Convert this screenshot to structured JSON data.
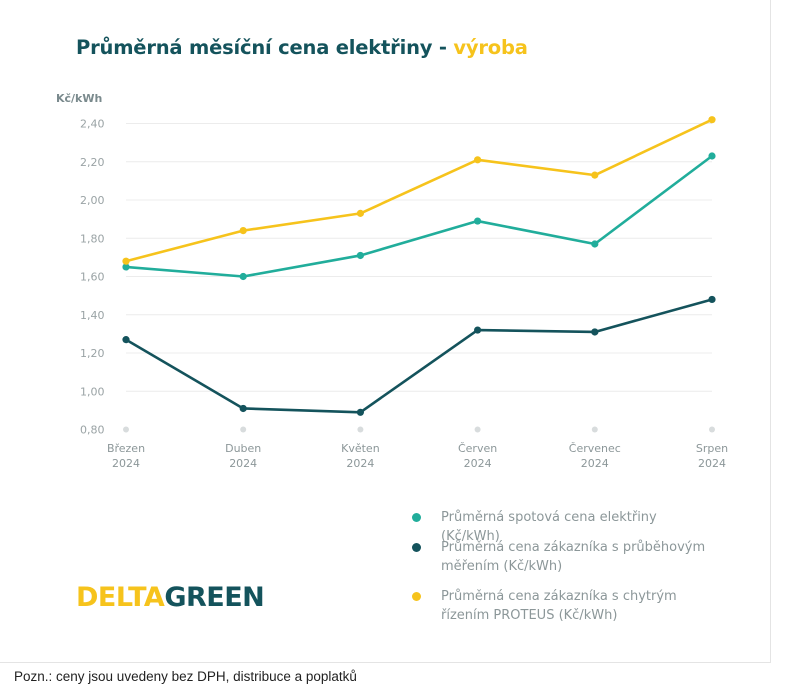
{
  "title": {
    "main": "Průměrná měsíční cena elektřiny -",
    "accent": "výroba"
  },
  "chart_data": {
    "type": "line",
    "ylabel": "Kč/kWh",
    "ylim": [
      0.8,
      2.4
    ],
    "yticks": [
      "0,80",
      "1,00",
      "1,20",
      "1,40",
      "1,60",
      "1,80",
      "2,00",
      "2,20",
      "2,40"
    ],
    "categories": [
      [
        "Březen",
        "2024"
      ],
      [
        "Duben",
        "2024"
      ],
      [
        "Květen",
        "2024"
      ],
      [
        "Červen",
        "2024"
      ],
      [
        "Červenec",
        "2024"
      ],
      [
        "Srpen",
        "2024"
      ]
    ],
    "series": [
      {
        "name": "Průměrná spotová cena elektřiny (Kč/kWh)",
        "color": "#21ad9b",
        "values": [
          1.65,
          1.6,
          1.71,
          1.89,
          1.77,
          2.23
        ]
      },
      {
        "name": "Průměrná cena zákazníka s průběhovým měřením (Kč/kWh)",
        "color": "#14535c",
        "values": [
          1.27,
          0.91,
          0.89,
          1.32,
          1.31,
          1.48
        ]
      },
      {
        "name": "Průměrná cena zákazníka s chytrým řízením PROTEUS (Kč/kWh)",
        "color": "#f6c31c",
        "values": [
          1.68,
          1.84,
          1.93,
          2.21,
          2.13,
          2.42
        ]
      }
    ],
    "grid": true,
    "legend": "bottom-right"
  },
  "legend": {
    "items": [
      {
        "line1": "Průměrná spotová cena elektřiny (Kč/kWh)",
        "line2": ""
      },
      {
        "line1": "Průměrná cena zákazníka s průběhovým",
        "line2": "měřením (Kč/kWh)"
      },
      {
        "line1": "Průměrná cena zákazníka s chytrým",
        "line2": "řízením PROTEUS (Kč/kWh)"
      }
    ]
  },
  "logo": {
    "part1": "DELTA",
    "part2": "GREEN"
  },
  "footnote": "Pozn.: ceny jsou uvedeny bez DPH, distribuce a poplatků"
}
